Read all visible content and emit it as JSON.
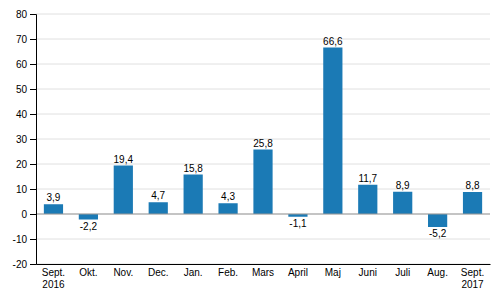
{
  "chart_data": {
    "type": "bar",
    "categories": [
      "Sept.\n2016",
      "Okt.",
      "Nov.",
      "Dec.",
      "Jan.",
      "Feb.",
      "Mars",
      "April",
      "Maj",
      "Juni",
      "Juli",
      "Aug.",
      "Sept.\n2017"
    ],
    "values": [
      3.9,
      -2.2,
      19.4,
      4.7,
      15.8,
      4.3,
      25.8,
      -1.1,
      66.6,
      11.7,
      8.9,
      -5.2,
      8.8
    ],
    "value_labels": [
      "3,9",
      "-2,2",
      "19,4",
      "4,7",
      "15,8",
      "4,3",
      "25,8",
      "-1,1",
      "66,6",
      "11,7",
      "8,9",
      "-5,2",
      "8,8"
    ],
    "data_labels": true,
    "color": "#1b7ab5",
    "ylim": [
      -20,
      80
    ],
    "yticks": [
      -20,
      -10,
      0,
      10,
      20,
      30,
      40,
      50,
      60,
      70,
      80
    ],
    "grid": true
  }
}
